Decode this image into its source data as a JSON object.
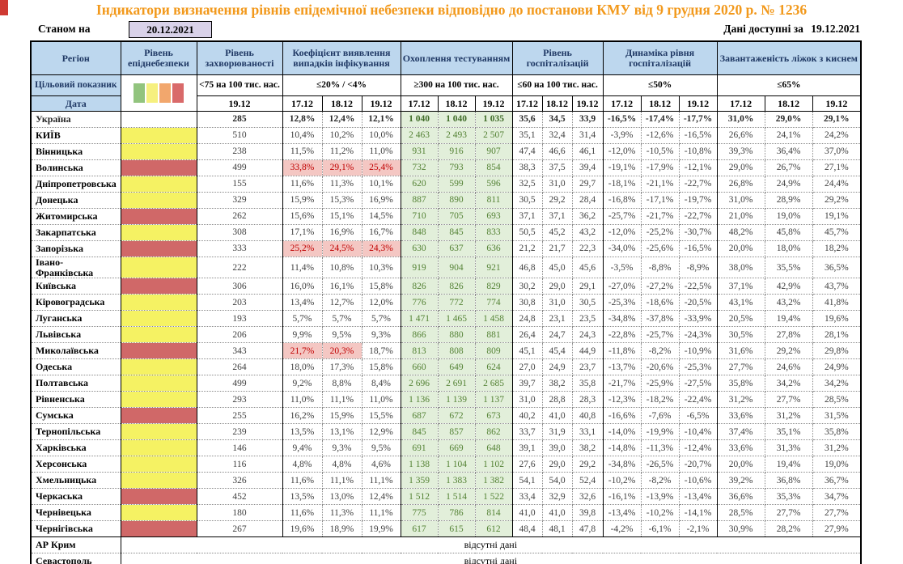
{
  "title": "Індикатори визначення рівнів епідемічної небезпеки відповідно до постанови КМУ від 9 грудня 2020 р. № 1236",
  "as_of": {
    "label": "Станом на",
    "date": "20.12.2021"
  },
  "available": {
    "label": "Дані доступні за",
    "date": "19.12.2021"
  },
  "no_data_text": "відсутні дані",
  "colors": {
    "title_orange": "#f2991c",
    "header_blue": "#bdd7ee",
    "header_text_navy": "#1f3864",
    "asof_lavender": "#d9d2e9",
    "level_yellow": "#f5f263",
    "level_red": "#d06868",
    "testing_green_bg": "#e2efda",
    "testing_green_text": "#548235",
    "alert_pink_bg": "#f4c7c3",
    "alert_red_text": "#c00000"
  },
  "header": {
    "region": "Регіон",
    "target": "Цільовий показник",
    "date": "Дата",
    "groups": [
      {
        "title": "Рівень епіднебезпеки"
      },
      {
        "title": "Рівень захворюваності",
        "threshold": "<75 на 100 тис. нас.",
        "dates": [
          "19.12"
        ]
      },
      {
        "title": "Коефіцієнт виявлення випадків інфікування",
        "threshold": "≤20% / <4%",
        "dates": [
          "17.12",
          "18.12",
          "19.12"
        ]
      },
      {
        "title": "Охоплення тестуванням",
        "threshold": "≥300 на 100 тис. нас.",
        "dates": [
          "17.12",
          "18.12",
          "19.12"
        ]
      },
      {
        "title": "Рівень госпіталізацій",
        "threshold": "≤60 на 100 тис. нас.",
        "dates": [
          "17.12",
          "18.12",
          "19.12"
        ]
      },
      {
        "title": "Динаміка рівня госпіталізацій",
        "threshold": "≤50%",
        "dates": [
          "17.12",
          "18.12",
          "19.12"
        ]
      },
      {
        "title": "Завантаженість ліжок з киснем",
        "threshold": "≤65%",
        "dates": [
          "17.12",
          "18.12",
          "19.12"
        ]
      }
    ]
  },
  "legend_colors": [
    "#92c47e",
    "#f6f07f",
    "#f2a76d",
    "#d96a6a"
  ],
  "rows": [
    {
      "region": "Україна",
      "level": "none",
      "bold": true,
      "incidence": "285",
      "detection": [
        "12,8%",
        "12,4%",
        "12,1%"
      ],
      "detection_hl": [
        false,
        false,
        false
      ],
      "testing": [
        "1 040",
        "1 040",
        "1 035"
      ],
      "hosp": [
        "35,6",
        "34,5",
        "33,9"
      ],
      "dynamics": [
        "-16,5%",
        "-17,4%",
        "-17,7%"
      ],
      "beds": [
        "31,0%",
        "29,0%",
        "29,1%"
      ]
    },
    {
      "region": "КИЇВ",
      "level": "yellow",
      "incidence": "510",
      "detection": [
        "10,4%",
        "10,2%",
        "10,0%"
      ],
      "detection_hl": [
        false,
        false,
        false
      ],
      "testing": [
        "2 463",
        "2 493",
        "2 507"
      ],
      "hosp": [
        "35,1",
        "32,4",
        "31,4"
      ],
      "dynamics": [
        "-3,9%",
        "-12,6%",
        "-16,5%"
      ],
      "beds": [
        "26,6%",
        "24,1%",
        "24,2%"
      ]
    },
    {
      "region": "Вінницька",
      "level": "yellow",
      "incidence": "238",
      "detection": [
        "11,5%",
        "11,2%",
        "11,0%"
      ],
      "detection_hl": [
        false,
        false,
        false
      ],
      "testing": [
        "931",
        "916",
        "907"
      ],
      "hosp": [
        "47,4",
        "46,6",
        "46,1"
      ],
      "dynamics": [
        "-12,0%",
        "-10,5%",
        "-10,8%"
      ],
      "beds": [
        "39,3%",
        "36,4%",
        "37,0%"
      ]
    },
    {
      "region": "Волинська",
      "level": "red",
      "incidence": "499",
      "detection": [
        "33,8%",
        "29,1%",
        "25,4%"
      ],
      "detection_hl": [
        true,
        true,
        true
      ],
      "testing": [
        "732",
        "793",
        "854"
      ],
      "hosp": [
        "38,3",
        "37,5",
        "39,4"
      ],
      "dynamics": [
        "-19,1%",
        "-17,9%",
        "-12,1%"
      ],
      "beds": [
        "29,0%",
        "26,7%",
        "27,1%"
      ]
    },
    {
      "region": "Дніпропетровська",
      "level": "yellow",
      "incidence": "155",
      "detection": [
        "11,6%",
        "11,3%",
        "10,1%"
      ],
      "detection_hl": [
        false,
        false,
        false
      ],
      "testing": [
        "620",
        "599",
        "596"
      ],
      "hosp": [
        "32,5",
        "31,0",
        "29,7"
      ],
      "dynamics": [
        "-18,1%",
        "-21,1%",
        "-22,7%"
      ],
      "beds": [
        "26,8%",
        "24,9%",
        "24,4%"
      ]
    },
    {
      "region": "Донецька",
      "level": "yellow",
      "incidence": "329",
      "detection": [
        "15,9%",
        "15,3%",
        "16,9%"
      ],
      "detection_hl": [
        false,
        false,
        false
      ],
      "testing": [
        "887",
        "890",
        "811"
      ],
      "hosp": [
        "30,5",
        "29,2",
        "28,4"
      ],
      "dynamics": [
        "-16,8%",
        "-17,1%",
        "-19,7%"
      ],
      "beds": [
        "31,0%",
        "28,9%",
        "29,2%"
      ]
    },
    {
      "region": "Житомирська",
      "level": "red",
      "incidence": "262",
      "detection": [
        "15,6%",
        "15,1%",
        "14,5%"
      ],
      "detection_hl": [
        false,
        false,
        false
      ],
      "testing": [
        "710",
        "705",
        "693"
      ],
      "hosp": [
        "37,1",
        "37,1",
        "36,2"
      ],
      "dynamics": [
        "-25,7%",
        "-21,7%",
        "-22,7%"
      ],
      "beds": [
        "21,0%",
        "19,0%",
        "19,1%"
      ]
    },
    {
      "region": "Закарпатська",
      "level": "yellow",
      "incidence": "308",
      "detection": [
        "17,1%",
        "16,9%",
        "16,7%"
      ],
      "detection_hl": [
        false,
        false,
        false
      ],
      "testing": [
        "848",
        "845",
        "833"
      ],
      "hosp": [
        "50,5",
        "45,2",
        "43,2"
      ],
      "dynamics": [
        "-12,0%",
        "-25,2%",
        "-30,7%"
      ],
      "beds": [
        "48,2%",
        "45,8%",
        "45,7%"
      ]
    },
    {
      "region": "Запорізька",
      "level": "red",
      "incidence": "333",
      "detection": [
        "25,2%",
        "24,5%",
        "24,3%"
      ],
      "detection_hl": [
        true,
        true,
        true
      ],
      "testing": [
        "630",
        "637",
        "636"
      ],
      "hosp": [
        "21,2",
        "21,7",
        "22,3"
      ],
      "dynamics": [
        "-34,0%",
        "-25,6%",
        "-16,5%"
      ],
      "beds": [
        "20,0%",
        "18,0%",
        "18,2%"
      ]
    },
    {
      "region": "Івано-\nФранківська",
      "level": "yellow",
      "incidence": "222",
      "detection": [
        "11,4%",
        "10,8%",
        "10,3%"
      ],
      "detection_hl": [
        false,
        false,
        false
      ],
      "testing": [
        "919",
        "904",
        "921"
      ],
      "hosp": [
        "46,8",
        "45,0",
        "45,6"
      ],
      "dynamics": [
        "-3,5%",
        "-8,8%",
        "-8,9%"
      ],
      "beds": [
        "38,0%",
        "35,5%",
        "36,5%"
      ]
    },
    {
      "region": "Київська",
      "level": "red",
      "incidence": "306",
      "detection": [
        "16,0%",
        "16,1%",
        "15,8%"
      ],
      "detection_hl": [
        false,
        false,
        false
      ],
      "testing": [
        "826",
        "826",
        "829"
      ],
      "hosp": [
        "30,2",
        "29,0",
        "29,1"
      ],
      "dynamics": [
        "-27,0%",
        "-27,2%",
        "-22,5%"
      ],
      "beds": [
        "37,1%",
        "42,9%",
        "43,7%"
      ]
    },
    {
      "region": "Кіровоградська",
      "level": "yellow",
      "incidence": "203",
      "detection": [
        "13,4%",
        "12,7%",
        "12,0%"
      ],
      "detection_hl": [
        false,
        false,
        false
      ],
      "testing": [
        "776",
        "772",
        "774"
      ],
      "hosp": [
        "30,8",
        "31,0",
        "30,5"
      ],
      "dynamics": [
        "-25,3%",
        "-18,6%",
        "-20,5%"
      ],
      "beds": [
        "43,1%",
        "43,2%",
        "41,8%"
      ]
    },
    {
      "region": "Луганська",
      "level": "yellow",
      "incidence": "193",
      "detection": [
        "5,7%",
        "5,7%",
        "5,7%"
      ],
      "detection_hl": [
        false,
        false,
        false
      ],
      "testing": [
        "1 471",
        "1 465",
        "1 458"
      ],
      "hosp": [
        "24,8",
        "23,1",
        "23,5"
      ],
      "dynamics": [
        "-34,8%",
        "-37,8%",
        "-33,9%"
      ],
      "beds": [
        "20,5%",
        "19,4%",
        "19,6%"
      ]
    },
    {
      "region": "Львівська",
      "level": "yellow",
      "incidence": "206",
      "detection": [
        "9,9%",
        "9,5%",
        "9,3%"
      ],
      "detection_hl": [
        false,
        false,
        false
      ],
      "testing": [
        "866",
        "880",
        "881"
      ],
      "hosp": [
        "26,4",
        "24,7",
        "24,3"
      ],
      "dynamics": [
        "-22,8%",
        "-25,7%",
        "-24,3%"
      ],
      "beds": [
        "30,5%",
        "27,8%",
        "28,1%"
      ]
    },
    {
      "region": "Миколаївська",
      "level": "red",
      "incidence": "343",
      "detection": [
        "21,7%",
        "20,3%",
        "18,7%"
      ],
      "detection_hl": [
        true,
        true,
        false
      ],
      "testing": [
        "813",
        "808",
        "809"
      ],
      "hosp": [
        "45,1",
        "45,4",
        "44,9"
      ],
      "dynamics": [
        "-11,8%",
        "-8,2%",
        "-10,9%"
      ],
      "beds": [
        "31,6%",
        "29,2%",
        "29,8%"
      ]
    },
    {
      "region": "Одеська",
      "level": "yellow",
      "incidence": "264",
      "detection": [
        "18,0%",
        "17,3%",
        "15,8%"
      ],
      "detection_hl": [
        false,
        false,
        false
      ],
      "testing": [
        "660",
        "649",
        "624"
      ],
      "hosp": [
        "27,0",
        "24,9",
        "23,7"
      ],
      "dynamics": [
        "-13,7%",
        "-20,6%",
        "-25,3%"
      ],
      "beds": [
        "27,7%",
        "24,6%",
        "24,9%"
      ]
    },
    {
      "region": "Полтавська",
      "level": "yellow",
      "incidence": "499",
      "detection": [
        "9,2%",
        "8,8%",
        "8,4%"
      ],
      "detection_hl": [
        false,
        false,
        false
      ],
      "testing": [
        "2 696",
        "2 691",
        "2 685"
      ],
      "hosp": [
        "39,7",
        "38,2",
        "35,8"
      ],
      "dynamics": [
        "-21,7%",
        "-25,9%",
        "-27,5%"
      ],
      "beds": [
        "35,8%",
        "34,2%",
        "34,2%"
      ]
    },
    {
      "region": "Рівненська",
      "level": "yellow",
      "incidence": "293",
      "detection": [
        "11,0%",
        "11,1%",
        "11,0%"
      ],
      "detection_hl": [
        false,
        false,
        false
      ],
      "testing": [
        "1 136",
        "1 139",
        "1 137"
      ],
      "hosp": [
        "31,0",
        "28,8",
        "28,3"
      ],
      "dynamics": [
        "-12,3%",
        "-18,2%",
        "-22,4%"
      ],
      "beds": [
        "31,2%",
        "27,7%",
        "28,5%"
      ]
    },
    {
      "region": "Сумська",
      "level": "red",
      "incidence": "255",
      "detection": [
        "16,2%",
        "15,9%",
        "15,5%"
      ],
      "detection_hl": [
        false,
        false,
        false
      ],
      "testing": [
        "687",
        "672",
        "673"
      ],
      "hosp": [
        "40,2",
        "41,0",
        "40,8"
      ],
      "dynamics": [
        "-16,6%",
        "-7,6%",
        "-6,5%"
      ],
      "beds": [
        "33,6%",
        "31,2%",
        "31,5%"
      ]
    },
    {
      "region": "Тернопільська",
      "level": "yellow",
      "incidence": "239",
      "detection": [
        "13,5%",
        "13,1%",
        "12,9%"
      ],
      "detection_hl": [
        false,
        false,
        false
      ],
      "testing": [
        "845",
        "857",
        "862"
      ],
      "hosp": [
        "33,7",
        "31,9",
        "33,1"
      ],
      "dynamics": [
        "-14,0%",
        "-19,9%",
        "-10,4%"
      ],
      "beds": [
        "37,4%",
        "35,1%",
        "35,8%"
      ]
    },
    {
      "region": "Харківська",
      "level": "yellow",
      "incidence": "146",
      "detection": [
        "9,4%",
        "9,3%",
        "9,5%"
      ],
      "detection_hl": [
        false,
        false,
        false
      ],
      "testing": [
        "691",
        "669",
        "648"
      ],
      "hosp": [
        "39,1",
        "39,0",
        "38,2"
      ],
      "dynamics": [
        "-14,8%",
        "-11,3%",
        "-12,4%"
      ],
      "beds": [
        "33,6%",
        "31,3%",
        "31,2%"
      ]
    },
    {
      "region": "Херсонська",
      "level": "yellow",
      "incidence": "116",
      "detection": [
        "4,8%",
        "4,8%",
        "4,6%"
      ],
      "detection_hl": [
        false,
        false,
        false
      ],
      "testing": [
        "1 138",
        "1 104",
        "1 102"
      ],
      "hosp": [
        "27,6",
        "29,0",
        "29,2"
      ],
      "dynamics": [
        "-34,8%",
        "-26,5%",
        "-20,7%"
      ],
      "beds": [
        "20,0%",
        "19,4%",
        "19,0%"
      ]
    },
    {
      "region": "Хмельницька",
      "level": "yellow",
      "incidence": "326",
      "detection": [
        "11,6%",
        "11,1%",
        "11,1%"
      ],
      "detection_hl": [
        false,
        false,
        false
      ],
      "testing": [
        "1 359",
        "1 383",
        "1 382"
      ],
      "hosp": [
        "54,1",
        "54,0",
        "52,4"
      ],
      "dynamics": [
        "-10,2%",
        "-8,2%",
        "-10,6%"
      ],
      "beds": [
        "39,2%",
        "36,8%",
        "36,7%"
      ]
    },
    {
      "region": "Черкаська",
      "level": "red",
      "incidence": "452",
      "detection": [
        "13,5%",
        "13,0%",
        "12,4%"
      ],
      "detection_hl": [
        false,
        false,
        false
      ],
      "testing": [
        "1 512",
        "1 514",
        "1 522"
      ],
      "hosp": [
        "33,4",
        "32,9",
        "32,6"
      ],
      "dynamics": [
        "-16,1%",
        "-13,9%",
        "-13,4%"
      ],
      "beds": [
        "36,6%",
        "35,3%",
        "34,7%"
      ]
    },
    {
      "region": "Чернівецька",
      "level": "yellow",
      "incidence": "180",
      "detection": [
        "11,6%",
        "11,3%",
        "11,1%"
      ],
      "detection_hl": [
        false,
        false,
        false
      ],
      "testing": [
        "775",
        "786",
        "814"
      ],
      "hosp": [
        "41,0",
        "41,0",
        "39,8"
      ],
      "dynamics": [
        "-13,4%",
        "-10,2%",
        "-14,1%"
      ],
      "beds": [
        "28,5%",
        "27,7%",
        "27,7%"
      ]
    },
    {
      "region": "Чернігівська",
      "level": "red",
      "incidence": "267",
      "detection": [
        "19,6%",
        "18,9%",
        "19,9%"
      ],
      "detection_hl": [
        false,
        false,
        false
      ],
      "testing": [
        "617",
        "615",
        "612"
      ],
      "hosp": [
        "48,4",
        "48,1",
        "47,8"
      ],
      "dynamics": [
        "-4,2%",
        "-6,1%",
        "-2,1%"
      ],
      "beds": [
        "30,9%",
        "28,2%",
        "27,9%"
      ]
    }
  ],
  "no_data_rows": [
    {
      "region": "АР Крим"
    },
    {
      "region": "Севастополь"
    }
  ]
}
